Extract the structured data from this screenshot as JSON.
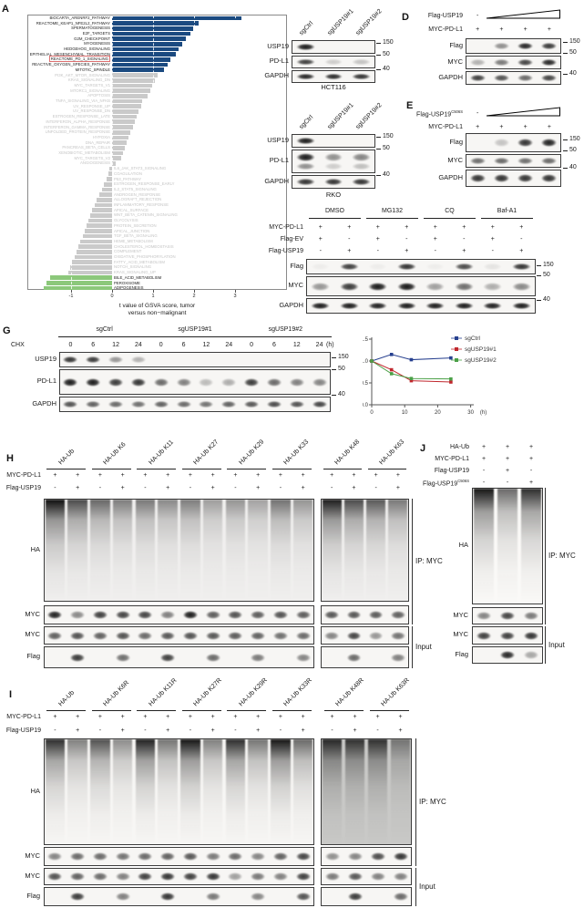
{
  "panels": {
    "A": {
      "label": "A"
    },
    "B": {
      "label": "B",
      "lane_headers": [
        "sgCtrl",
        "sgUSP19#1",
        "sgUSP19#2"
      ],
      "boxes": [
        {
          "name": "USP19",
          "marker": "150",
          "bands": [
            0.95,
            0,
            0
          ]
        },
        {
          "name": "PD-L1",
          "marker": "50",
          "bands": [
            0.8,
            0.18,
            0.22
          ]
        },
        {
          "name": "GAPDH",
          "marker": "40",
          "bands": [
            0.9,
            0.88,
            0.85
          ]
        }
      ],
      "caption": "HCT116"
    },
    "C": {
      "label": "C",
      "lane_headers": [
        "sgCtrl",
        "sgUSP19#1",
        "sgUSP19#2"
      ],
      "boxes": [
        {
          "name": "USP19",
          "marker": "150",
          "bands": [
            0.95,
            0,
            0
          ]
        },
        {
          "name": "PD-L1",
          "marker": "50",
          "bands": [
            0.95,
            0.45,
            0.5
          ],
          "bands2": [
            0.45,
            0.18,
            0.24
          ]
        },
        {
          "name": "GAPDH",
          "marker": "40",
          "bands": [
            0.85,
            0.85,
            0.85
          ]
        }
      ],
      "caption": "RKO"
    },
    "D": {
      "label": "D",
      "rows": [
        {
          "label": "Flag-USP19",
          "values": [
            "-",
            "",
            "",
            ""
          ],
          "triangle": true
        },
        {
          "label": "MYC-PD-L1",
          "values": [
            "+",
            "+",
            "+",
            "+"
          ]
        }
      ],
      "boxes": [
        {
          "name": "Flag",
          "marker": "150",
          "bands": [
            0,
            0.45,
            0.9,
            0.82
          ]
        },
        {
          "name": "MYC",
          "marker": "50",
          "bands": [
            0.3,
            0.55,
            0.78,
            0.9
          ]
        },
        {
          "name": "GAPDH",
          "marker": "40",
          "bands": [
            0.8,
            0.72,
            0.62,
            0.78
          ]
        }
      ]
    },
    "E": {
      "label": "E",
      "rows": [
        {
          "label": "Flag-USP19^C506S",
          "values": [
            "-",
            "",
            "",
            ""
          ],
          "triangle": true
        },
        {
          "label": "MYC-PD-L1",
          "values": [
            "+",
            "+",
            "+",
            "+"
          ]
        }
      ],
      "boxes": [
        {
          "name": "Flag",
          "marker": "150",
          "bands": [
            0,
            0.22,
            0.85,
            0.92
          ]
        },
        {
          "name": "MYC",
          "marker": "50",
          "bands": [
            0.6,
            0.62,
            0.6,
            0.62
          ]
        },
        {
          "name": "GAPDH",
          "marker": "40",
          "bands": [
            0.85,
            0.86,
            0.85,
            0.86
          ]
        }
      ]
    },
    "F": {
      "label": "F",
      "groups": [
        "DMSO",
        "MG132",
        "CQ",
        "Baf-A1"
      ],
      "rows": [
        {
          "label": "MYC-PD-L1",
          "values": [
            "+",
            "+",
            "+",
            "+",
            "+",
            "+",
            "+",
            "+"
          ]
        },
        {
          "label": "Flag-EV",
          "values": [
            "+",
            "-",
            "+",
            "-",
            "+",
            "-",
            "+",
            "-"
          ]
        },
        {
          "label": "Flag-USP19",
          "values": [
            "-",
            "+",
            "-",
            "+",
            "-",
            "+",
            "-",
            "+"
          ]
        }
      ],
      "boxes": [
        {
          "name": "Flag",
          "marker": "150",
          "bands": [
            0.04,
            0.8,
            0.04,
            0.85,
            0.04,
            0.75,
            0.08,
            0.85
          ]
        },
        {
          "name": "MYC",
          "marker": "50",
          "bands": [
            0.42,
            0.82,
            0.96,
            0.97,
            0.38,
            0.6,
            0.32,
            0.48
          ]
        },
        {
          "name": "GAPDH",
          "marker": "40",
          "bands": [
            0.95,
            0.95,
            0.93,
            0.95,
            0.94,
            0.95,
            0.93,
            0.95
          ]
        }
      ]
    },
    "G": {
      "label": "G",
      "treatment": "CHX",
      "groups": [
        "sgCtrl",
        "sgUSP19#1",
        "sgUSP19#2"
      ],
      "timepoints": [
        "0",
        "6",
        "12",
        "24"
      ],
      "time_unit": "(h)",
      "boxes": [
        {
          "name": "USP19",
          "marker": "150",
          "bands": [
            0.85,
            0.82,
            0.42,
            0.3,
            0,
            0,
            0,
            0,
            0,
            0,
            0,
            0
          ]
        },
        {
          "name": "PD-L1",
          "marker": "50",
          "bands": [
            0.95,
            0.95,
            0.82,
            0.85,
            0.62,
            0.52,
            0.26,
            0.32,
            0.82,
            0.62,
            0.52,
            0.5
          ]
        },
        {
          "name": "GAPDH",
          "marker": "40",
          "bands": [
            0.72,
            0.66,
            0.62,
            0.6,
            0.66,
            0.62,
            0.58,
            0.66,
            0.7,
            0.75,
            0.72,
            0.78
          ]
        }
      ]
    },
    "H": {
      "label": "H",
      "group_headers": [
        "HA-Ub",
        "HA-Ub K6",
        "HA-Ub K11",
        "HA-Ub K27",
        "HA-Ub K29",
        "HA-Ub K33",
        "HA-Ub K48",
        "HA-Ub K63"
      ],
      "rows": [
        {
          "label": "MYC-PD-L1",
          "values": [
            "+",
            "+",
            "+",
            "+",
            "+",
            "+",
            "+",
            "+",
            "+",
            "+",
            "+",
            "+",
            "+",
            "+",
            "+",
            "+"
          ]
        },
        {
          "label": "Flag-USP19",
          "values": [
            "-",
            "+",
            "-",
            "+",
            "-",
            "+",
            "-",
            "+",
            "-",
            "+",
            "-",
            "+",
            "-",
            "+",
            "-",
            "+"
          ]
        }
      ],
      "boxes": [
        {
          "name": "HA",
          "type": "smear",
          "bands": [
            0.98,
            0.72,
            0.6,
            0.5,
            0.52,
            0.45,
            0.5,
            0.36,
            0.4,
            0.34,
            0.55,
            0.4,
            0.92,
            0.72,
            0.66,
            0.52
          ]
        },
        {
          "name": "MYC",
          "bands": [
            0.92,
            0.48,
            0.8,
            0.78,
            0.78,
            0.52,
            0.95,
            0.68,
            0.72,
            0.68,
            0.72,
            0.68,
            0.7,
            0.7,
            0.68,
            0.66
          ]
        },
        {
          "name": "MYC",
          "bands": [
            0.66,
            0.72,
            0.66,
            0.72,
            0.62,
            0.7,
            0.72,
            0.7,
            0.68,
            0.66,
            0.6,
            0.62,
            0.5,
            0.78,
            0.42,
            0.58
          ]
        },
        {
          "name": "Flag",
          "bands": [
            0,
            0.82,
            0,
            0.6,
            0,
            0.8,
            0,
            0.62,
            0,
            0.55,
            0,
            0.5,
            0,
            0.62,
            0,
            0.52
          ]
        }
      ],
      "brackets": [
        {
          "label": "IP: MYC",
          "from": 0,
          "to": 1
        },
        {
          "label": "Input",
          "from": 2,
          "to": 3
        }
      ]
    },
    "I": {
      "label": "I",
      "group_headers": [
        "HA-Ub",
        "HA-Ub K6R",
        "HA-Ub K11R",
        "HA-Ub K27R",
        "HA-Ub K29R",
        "HA-Ub K33R",
        "HA-Ub K48R",
        "HA-Ub K63R"
      ],
      "rows": [
        {
          "label": "MYC-PD-L1",
          "values": [
            "+",
            "+",
            "+",
            "+",
            "+",
            "+",
            "+",
            "+",
            "+",
            "+",
            "+",
            "+",
            "+",
            "+",
            "+",
            "+"
          ]
        },
        {
          "label": "Flag-USP19",
          "values": [
            "-",
            "+",
            "-",
            "+",
            "-",
            "+",
            "-",
            "+",
            "-",
            "+",
            "-",
            "+",
            "-",
            "+",
            "-",
            "+"
          ]
        }
      ],
      "boxes": [
        {
          "name": "HA",
          "type": "smear",
          "bands": [
            0.85,
            0.5,
            0.7,
            0.45,
            0.9,
            0.55,
            0.95,
            0.5,
            0.85,
            0.55,
            0.95,
            0.6,
            0.85,
            0.8,
            0.8,
            0.45
          ]
        },
        {
          "name": "MYC",
          "bands": [
            0.5,
            0.62,
            0.62,
            0.58,
            0.62,
            0.66,
            0.7,
            0.55,
            0.62,
            0.5,
            0.66,
            0.78,
            0.45,
            0.5,
            0.75,
            0.85
          ]
        },
        {
          "name": "MYC",
          "bands": [
            0.72,
            0.66,
            0.62,
            0.52,
            0.8,
            0.85,
            0.8,
            0.85,
            0.38,
            0.56,
            0.52,
            0.8,
            0.55,
            0.7,
            0.52,
            0.52
          ]
        },
        {
          "name": "Flag",
          "bands": [
            0,
            0.82,
            0,
            0.52,
            0,
            0.85,
            0,
            0.56,
            0,
            0.5,
            0,
            0.72,
            0,
            0.82,
            0,
            0.62
          ]
        }
      ],
      "brackets": [
        {
          "label": "IP: MYC",
          "from": 0,
          "to": 1
        },
        {
          "label": "Input",
          "from": 2,
          "to": 3
        }
      ]
    },
    "J": {
      "label": "J",
      "rows": [
        {
          "label": "HA-Ub",
          "values": [
            "+",
            "+",
            "+"
          ]
        },
        {
          "label": "MYC-PD-L1",
          "values": [
            "+",
            "+",
            "+"
          ]
        },
        {
          "label": "Flag-USP19",
          "values": [
            "-",
            "+",
            "-"
          ]
        },
        {
          "label": "Flag-USP19^C506S",
          "values": [
            "-",
            "-",
            "+"
          ]
        }
      ],
      "boxes": [
        {
          "name": "HA",
          "type": "smear",
          "bands": [
            0.95,
            0.6,
            0.85
          ]
        },
        {
          "name": "MYC",
          "bands": [
            0.5,
            0.78,
            0.55
          ]
        },
        {
          "name": "MYC",
          "bands": [
            0.8,
            0.8,
            0.85
          ]
        },
        {
          "name": "Flag",
          "bands": [
            0,
            0.9,
            0.35
          ]
        }
      ],
      "brackets": [
        {
          "label": "IP: MYC",
          "from": 0,
          "to": 1
        },
        {
          "label": "Input",
          "from": 2,
          "to": 3
        }
      ]
    }
  },
  "chart_data": [
    {
      "type": "bar",
      "orientation": "horizontal",
      "title": "",
      "xlabel": "t value of GSVA score, tumor\nversus non−malignant",
      "xticks": [
        -1,
        0,
        1,
        2,
        3
      ],
      "xlim": [
        -2.05,
        4.25
      ],
      "grid": "white-dashed",
      "highlight": "REACTOME_PD_1_SIGNALING",
      "n_up": 11,
      "n_down": 3,
      "colors": {
        "up": "#1b4a80",
        "mid": "#cacaca",
        "down": "#8cc87b"
      },
      "categories": [
        "BIOCARTA_ARENRF2_PATHWAY",
        "REACTOME_KEAP1_NFE2L2_PATHWAY",
        "SPERMATOGENESIS",
        "E2F_TARGETS",
        "G2M_CHECKPOINT",
        "MYOGENESIS",
        "HEDGEHOG_SIGNALING",
        "EPITHELIAL_MESENCHYMAL_TRANSITION",
        "REACTOME_PD_1_SIGNALING",
        "REACTIVE_OXYGEN_SPECIES_PATHWAY",
        "MITOTIC_SPINDLE",
        "PI3K_AKT_MTOR_SIGNALING",
        "KRAS_SIGNALING_DN",
        "MYC_TARGETS_V1",
        "MTORC1_SIGNALING",
        "APOPTOSIS",
        "TNFA_SIGNALING_VIA_NFKB",
        "UV_RESPONSE_UP",
        "UV_RESPONSE_DN",
        "ESTROGEN_RESPONSE_LATE",
        "INTERFERON_ALPHA_RESPONSE",
        "INTERFERON_GAMMA_RESPONSE",
        "UNFOLDED_PROTEIN_RESPONSE",
        "HYPOXIA",
        "DNA_REPAIR",
        "PANCREAS_BETA_CELLS",
        "XENOBIOTIC_METABOLISM",
        "MYC_TARGETS_V2",
        "ANGIOGENESIS",
        "IL6_JAK_STAT3_SIGNALING",
        "COAGULATION",
        "P53_PATHWAY",
        "ESTROGEN_RESPONSE_EARLY",
        "IL2_STAT5_SIGNALING",
        "ANDROGEN_RESPONSE",
        "ALLOGRAFT_REJECTION",
        "INFLAMMATORY_RESPONSE",
        "APICAL_SURFACE",
        "WNT_BETA_CATENIN_SIGNALING",
        "GLYCOLYSIS",
        "PROTEIN_SECRETION",
        "APICAL_JUNCTION",
        "TGF_BETA_SIGNALING",
        "HEME_METABOLISM",
        "CHOLESTEROL_HOMEOSTASIS",
        "COMPLEMENT",
        "OXIDATIVE_PHOSPHORYLATION",
        "FATTY_ACID_METABOLISM",
        "NOTCH_SIGNALING",
        "KRAS_SIGNALING_UP",
        "BILE_ACID_METABOLISM",
        "PEROXISOME",
        "ADIPOGENESIS"
      ],
      "values": [
        3.15,
        2.1,
        1.97,
        1.9,
        1.8,
        1.72,
        1.63,
        1.55,
        1.42,
        1.35,
        1.27,
        1.1,
        1.04,
        0.98,
        0.93,
        0.87,
        0.74,
        0.7,
        0.65,
        0.6,
        0.55,
        0.5,
        0.45,
        0.4,
        0.35,
        0.31,
        0.27,
        0.22,
        0.08,
        -0.06,
        -0.1,
        -0.14,
        -0.19,
        -0.25,
        -0.31,
        -0.38,
        -0.43,
        -0.48,
        -0.53,
        -0.57,
        -0.62,
        -0.67,
        -0.72,
        -0.77,
        -0.82,
        -0.87,
        -0.92,
        -0.97,
        -1.02,
        -1.07,
        -1.52,
        -1.6,
        -1.66
      ]
    },
    {
      "type": "line",
      "xlabel": "(h)",
      "xticks": [
        0,
        10,
        20,
        30
      ],
      "yticks": [
        0,
        0.5,
        1,
        1.5
      ],
      "ylim": [
        0,
        1.5
      ],
      "xlim": [
        0,
        30
      ],
      "legend_position": "top-right",
      "x": [
        0,
        6,
        12,
        24
      ],
      "series": [
        {
          "name": "sgCtrl",
          "color": "#27408f",
          "values": [
            1.0,
            1.15,
            1.03,
            1.07
          ]
        },
        {
          "name": "sgUSP19#1",
          "color": "#c0272d",
          "values": [
            1.0,
            0.8,
            0.55,
            0.52
          ]
        },
        {
          "name": "sgUSP19#2",
          "color": "#4ba047",
          "values": [
            1.0,
            0.71,
            0.6,
            0.59
          ]
        }
      ]
    }
  ]
}
